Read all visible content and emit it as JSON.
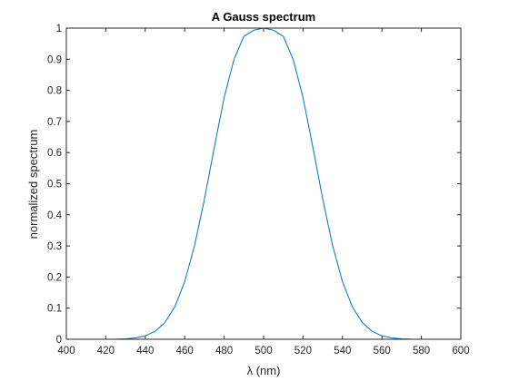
{
  "chart_data": {
    "type": "line",
    "title": "A Gauss spectrum",
    "xlabel": "λ (nm)",
    "ylabel": "normalized spectrum",
    "xlim": [
      400,
      600
    ],
    "ylim": [
      0,
      1
    ],
    "xticks": [
      400,
      420,
      440,
      460,
      480,
      500,
      520,
      540,
      560,
      580,
      600
    ],
    "yticks": [
      0,
      0.1,
      0.2,
      0.3,
      0.4,
      0.5,
      0.6,
      0.7,
      0.8,
      0.9,
      1
    ],
    "xtick_labels": [
      "400",
      "420",
      "440",
      "460",
      "480",
      "500",
      "520",
      "540",
      "560",
      "580",
      "600"
    ],
    "ytick_labels": [
      "0",
      "0.1",
      "0.2",
      "0.3",
      "0.4",
      "0.5",
      "0.6",
      "0.7",
      "0.8",
      "0.9",
      "1"
    ],
    "grid": false,
    "line_color": "#0072BD",
    "series": [
      {
        "x": [
          400,
          405,
          410,
          415,
          420,
          425,
          430,
          435,
          440,
          445,
          450,
          455,
          460,
          465,
          470,
          475,
          480,
          485,
          490,
          495,
          500,
          505,
          510,
          515,
          520,
          525,
          530,
          535,
          540,
          545,
          550,
          555,
          560,
          565,
          570,
          575,
          580,
          585,
          590,
          595,
          600
        ],
        "y": [
          0,
          0,
          0,
          0,
          0.0001,
          0.0005,
          0.0016,
          0.0044,
          0.0111,
          0.0256,
          0.054,
          0.1047,
          0.1851,
          0.301,
          0.4497,
          0.6166,
          0.7765,
          0.8993,
          0.9737,
          0.9933,
          1,
          0.9933,
          0.9737,
          0.8993,
          0.7765,
          0.6166,
          0.4497,
          0.301,
          0.1851,
          0.1047,
          0.054,
          0.0256,
          0.0111,
          0.0044,
          0.0016,
          0.0005,
          0.0001,
          0,
          0,
          0,
          0
        ]
      }
    ]
  }
}
